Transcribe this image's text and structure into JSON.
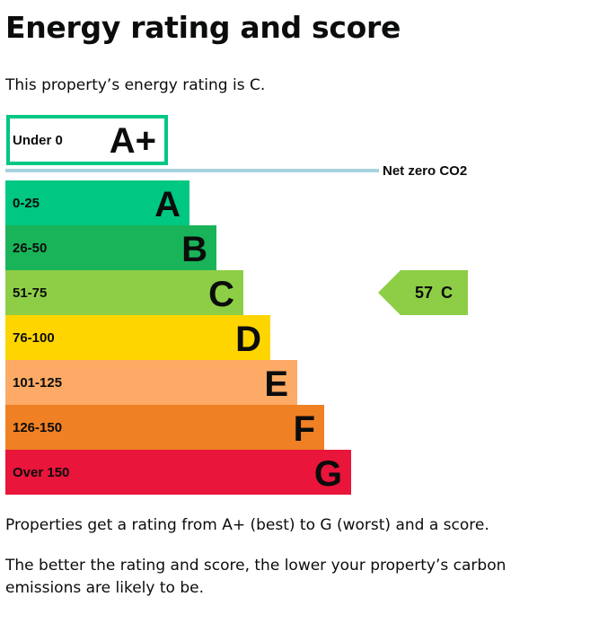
{
  "page": {
    "title": "Energy rating and score",
    "intro": "This property’s energy rating is C.",
    "note_1": "Properties get a rating from A+ (best) to G (worst) and a score.",
    "note_2": "The better the rating and score, the lower your property’s carbon emissions are likely to be."
  },
  "chart_data": {
    "type": "bar",
    "orientation": "horizontal",
    "top_band": {
      "range": "Under 0",
      "letter": "A+",
      "style": "outlined",
      "color": "#00c781"
    },
    "net_zero": {
      "label": "Net zero CO2",
      "color": "#a8d3de"
    },
    "bands": [
      {
        "range": "0-25",
        "letter": "A",
        "color": "#00c781"
      },
      {
        "range": "26-50",
        "letter": "B",
        "color": "#19b459"
      },
      {
        "range": "51-75",
        "letter": "C",
        "color": "#8dce46"
      },
      {
        "range": "76-100",
        "letter": "D",
        "color": "#ffd500"
      },
      {
        "range": "101-125",
        "letter": "E",
        "color": "#fcaa65"
      },
      {
        "range": "126-150",
        "letter": "F",
        "color": "#ef8023"
      },
      {
        "range": "Over 150",
        "letter": "G",
        "color": "#e9153b"
      }
    ],
    "current": {
      "score": "57",
      "letter": "C",
      "band_index": 2,
      "color": "#8dce46"
    }
  }
}
